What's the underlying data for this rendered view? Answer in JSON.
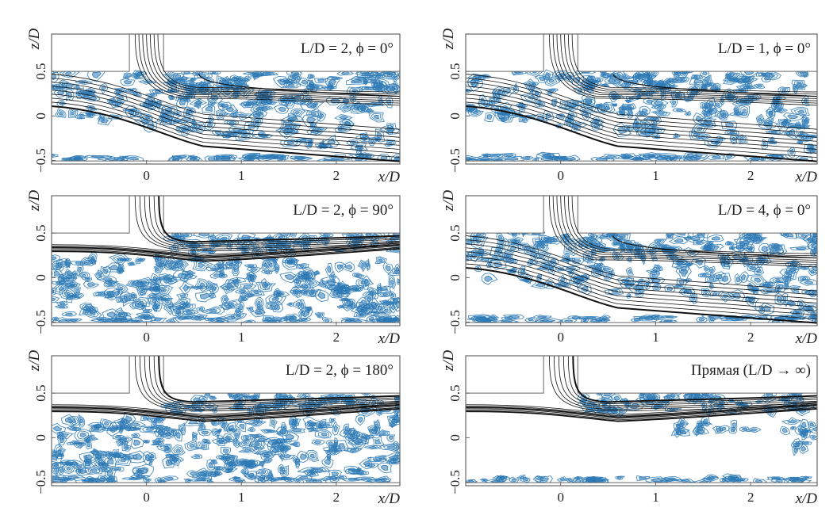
{
  "chart_data": {
    "type": "contour",
    "colors": {
      "vortex_contours": "#2a78b4",
      "streamlines": "#111111",
      "frame": "#666666"
    },
    "panels": [
      {
        "title": "L/D = 2, ϕ = 0°",
        "xlabel": "x/D",
        "ylabel": "z/D",
        "xticks": [
          "0",
          "1",
          "2"
        ],
        "yticks": [
          "0.5",
          "0",
          "−0.5"
        ],
        "xlim": [
          -1.0,
          2.67
        ],
        "ylim": [
          -0.54,
          0.92
        ],
        "flow": "elbow"
      },
      {
        "title": "L/D = 1, ϕ = 0°",
        "xlabel": "x/D",
        "ylabel": "z/D",
        "xticks": [
          "0",
          "1",
          "2"
        ],
        "yticks": [
          "0.5",
          "0",
          "−0.5"
        ],
        "xlim": [
          -1.0,
          2.7
        ],
        "ylim": [
          -0.54,
          0.92
        ],
        "flow": "elbow"
      },
      {
        "title": "L/D = 2, ϕ = 90°",
        "xlabel": "x/D",
        "ylabel": "z/D",
        "xticks": [
          "0",
          "1",
          "2"
        ],
        "yticks": [
          "0.5",
          "0",
          "−0.5"
        ],
        "xlim": [
          -1.0,
          2.67
        ],
        "ylim": [
          -0.54,
          0.92
        ],
        "flow": "straight"
      },
      {
        "title": "L/D = 4, ϕ = 0°",
        "xlabel": "x/D",
        "ylabel": "z/D",
        "xticks": [
          "0",
          "1",
          "2"
        ],
        "yticks": [
          "0.5",
          "0",
          "−0.5"
        ],
        "xlim": [
          -1.0,
          2.7
        ],
        "ylim": [
          -0.54,
          0.92
        ],
        "flow": "elbow"
      },
      {
        "title": "L/D = 2, ϕ = 180°",
        "xlabel": "x/D",
        "ylabel": "z/D",
        "xticks": [
          "0",
          "1",
          "2"
        ],
        "yticks": [
          "0.5",
          "0",
          "−0.5"
        ],
        "xlim": [
          -1.0,
          2.67
        ],
        "ylim": [
          -0.54,
          0.92
        ],
        "flow": "straight"
      },
      {
        "title": "Прямая (L/D → ∞)",
        "xlabel": "x/D",
        "ylabel": "z/D",
        "xticks": [
          "0",
          "1",
          "2"
        ],
        "yticks": [
          "0.5",
          "0",
          "−0.5"
        ],
        "xlim": [
          -1.0,
          2.7
        ],
        "ylim": [
          -0.54,
          0.92
        ],
        "flow": "straight-clean"
      }
    ],
    "grid": false
  }
}
